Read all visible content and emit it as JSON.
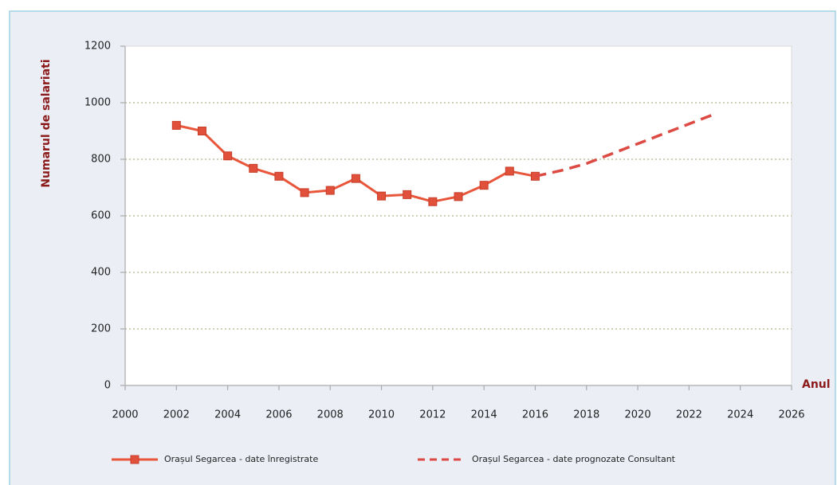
{
  "chart_data": {
    "type": "line",
    "x_label": "Anul",
    "y_label": "Numarul de salariati",
    "x": [
      2002,
      2003,
      2004,
      2005,
      2006,
      2007,
      2008,
      2009,
      2010,
      2011,
      2012,
      2013,
      2014,
      2015,
      2016,
      2017,
      2018,
      2019,
      2020,
      2021,
      2022,
      2023
    ],
    "series": [
      {
        "name": "Orașul Segarcea - date înregistrate",
        "color": "#e8563c",
        "values": [
          920,
          900,
          812,
          768,
          740,
          682,
          690,
          732,
          670,
          675,
          650,
          668,
          708,
          758,
          740,
          null,
          null,
          null,
          null,
          null,
          null,
          null
        ]
      },
      {
        "name": "Orașul Segarcea - date prognozate Consultant",
        "color": "#dd4a44",
        "values": [
          null,
          null,
          null,
          null,
          null,
          null,
          null,
          null,
          null,
          null,
          null,
          null,
          null,
          null,
          740,
          760,
          785,
          820,
          855,
          890,
          925,
          960
        ]
      }
    ],
    "xlim": [
      2000,
      2026
    ],
    "xticks": [
      2000,
      2002,
      2004,
      2006,
      2008,
      2010,
      2012,
      2014,
      2016,
      2018,
      2020,
      2022,
      2024,
      2026
    ],
    "ylim": [
      0,
      1200
    ],
    "yticks": [
      0,
      200,
      400,
      600,
      800,
      1000,
      1200
    ],
    "grid": true
  }
}
